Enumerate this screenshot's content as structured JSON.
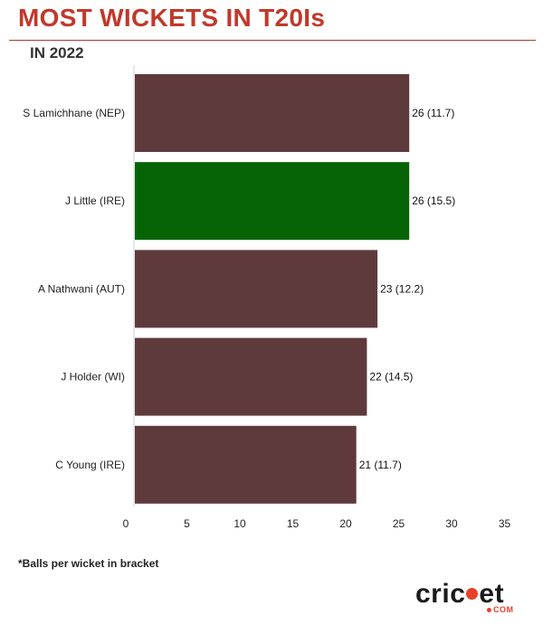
{
  "header": {
    "title": "MOST WICKETS IN T20Is",
    "subtitle": "IN 2022",
    "title_color": "#c0392b"
  },
  "footnote": "*Balls per wicket in bracket",
  "logo": {
    "word_start": "cric",
    "word_end": "et",
    "sub": "COM",
    "dot_color": "#e8412b"
  },
  "chart_data": {
    "type": "bar",
    "orientation": "horizontal",
    "categories": [
      "S Lamichhane (NEP)",
      "J Little (IRE)",
      "A Nathwani (AUT)",
      "J Holder (WI)",
      "C Young (IRE)"
    ],
    "values": [
      26,
      26,
      23,
      22,
      21
    ],
    "data_labels": [
      "26 (11.7)",
      "26 (15.5)",
      "23 (12.2)",
      "22 (14.5)",
      "21 (11.7)"
    ],
    "colors": [
      "#5e3a3d",
      "#076406",
      "#5e3a3d",
      "#5e3a3d",
      "#5e3a3d"
    ],
    "xlim": [
      0,
      35
    ],
    "xticks": [
      0,
      5,
      10,
      15,
      20,
      25,
      30,
      35
    ],
    "grid": false
  }
}
